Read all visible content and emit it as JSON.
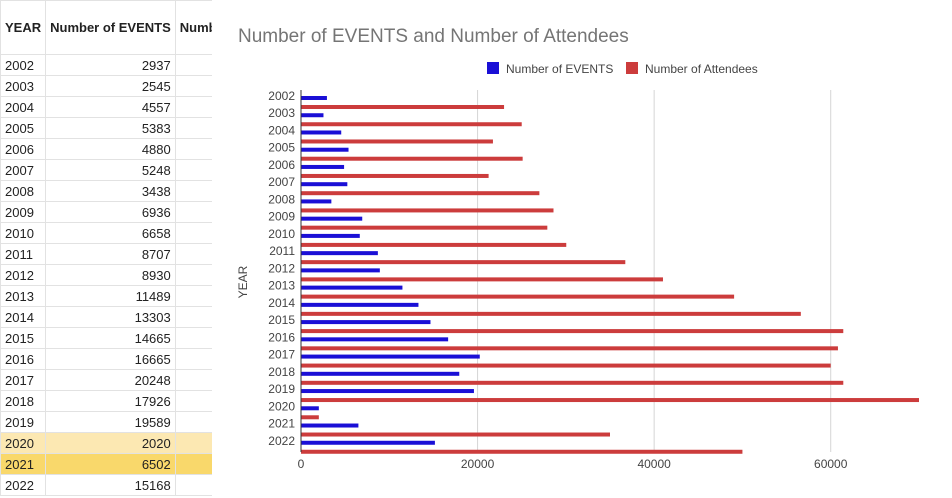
{
  "table": {
    "headers": [
      "YEAR",
      "Number of EVENTS",
      "Number of Attendee"
    ],
    "rows": [
      [
        "2002",
        "2937",
        "23000"
      ],
      [
        "2003",
        "2545",
        "25000"
      ],
      [
        "2004",
        "4557",
        "21741"
      ],
      [
        "2005",
        "5383",
        "25106"
      ],
      [
        "2006",
        "4880",
        "21250"
      ],
      [
        "2007",
        "5248",
        "27000"
      ],
      [
        "2008",
        "3438",
        "28600"
      ],
      [
        "2009",
        "6936",
        "27900"
      ],
      [
        "2010",
        "6658",
        "30046"
      ],
      [
        "2011",
        "8707",
        "36733"
      ],
      [
        "2012",
        "8930",
        "41000"
      ],
      [
        "2013",
        "11489",
        "49058"
      ],
      [
        "2014",
        "13303",
        "56614"
      ],
      [
        "2015",
        "14665",
        "61423"
      ],
      [
        "2016",
        "16665",
        "60819"
      ],
      [
        "2017",
        "20248",
        "60000"
      ],
      [
        "2018",
        "17926",
        "61424"
      ],
      [
        "2019",
        "19589",
        "70000"
      ],
      [
        "2020",
        "2020",
        "2020"
      ],
      [
        "2021",
        "6502",
        "35000"
      ],
      [
        "2022",
        "15168",
        "50000"
      ]
    ],
    "highlighted_rows": {
      "2020": "light",
      "2021": "strong"
    }
  },
  "chart_data": {
    "type": "bar",
    "orientation": "horizontal",
    "title": "Number of EVENTS and Number of Attendees",
    "xlabel": "",
    "ylabel": "YEAR",
    "categories": [
      "2002",
      "2003",
      "2004",
      "2005",
      "2006",
      "2007",
      "2008",
      "2009",
      "2010",
      "2011",
      "2012",
      "2013",
      "2014",
      "2015",
      "2016",
      "2017",
      "2018",
      "2019",
      "2020",
      "2021",
      "2022"
    ],
    "series": [
      {
        "name": "Number of EVENTS",
        "color": "#1a0fd6",
        "values": [
          2937,
          2545,
          4557,
          5383,
          4880,
          5248,
          3438,
          6936,
          6658,
          8707,
          8930,
          11489,
          13303,
          14665,
          16665,
          20248,
          17926,
          19589,
          2020,
          6502,
          15168
        ]
      },
      {
        "name": "Number of Attendees",
        "color": "#cc3c3c",
        "values": [
          23000,
          25000,
          21741,
          25106,
          21250,
          27000,
          28600,
          27900,
          30046,
          36733,
          41000,
          49058,
          56614,
          61423,
          60819,
          60000,
          61424,
          70000,
          2020,
          35000,
          50000
        ]
      }
    ],
    "xlim": [
      0,
      70000
    ],
    "xticks": [
      0,
      20000,
      40000,
      60000
    ],
    "xtick_labels": [
      "0",
      "20000",
      "40000",
      "60000"
    ],
    "grid": true,
    "legend_position": "top"
  }
}
